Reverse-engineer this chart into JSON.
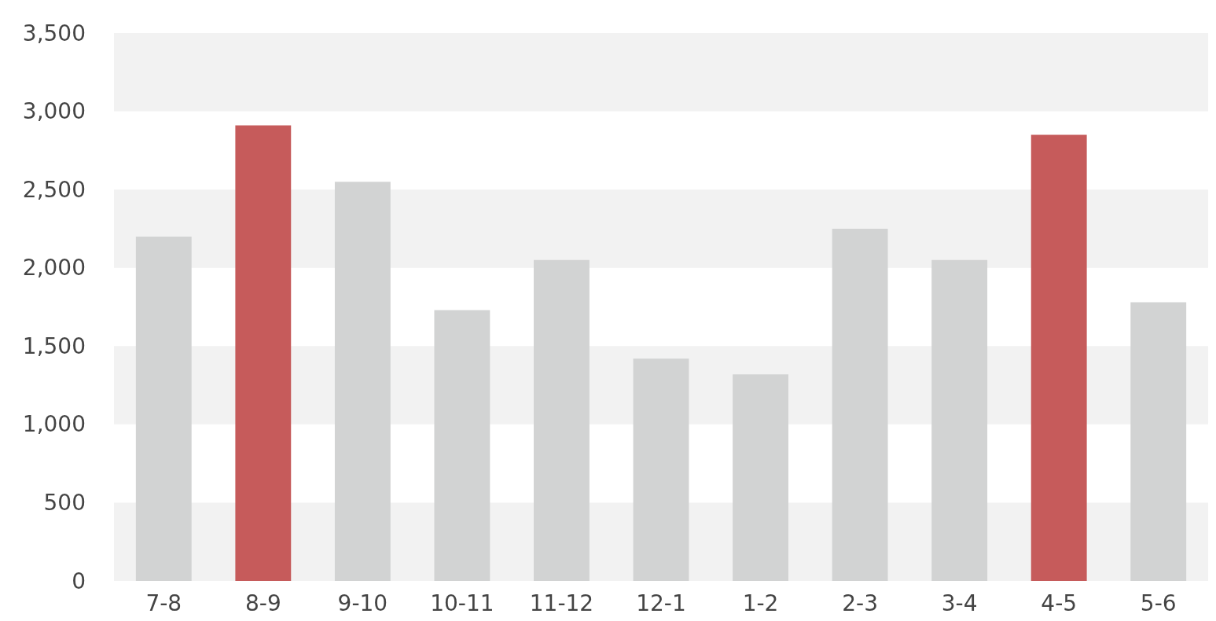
{
  "chart_data": {
    "type": "bar",
    "categories": [
      "7-8",
      "8-9",
      "9-10",
      "10-11",
      "11-12",
      "12-1",
      "1-2",
      "2-3",
      "3-4",
      "4-5",
      "5-6"
    ],
    "values": [
      2200,
      2910,
      2550,
      1730,
      2050,
      1420,
      1320,
      2250,
      2050,
      2850,
      1780
    ],
    "colors": [
      "#d2d3d3",
      "#c65b5b",
      "#d2d3d3",
      "#d2d3d3",
      "#d2d3d3",
      "#d2d3d3",
      "#d2d3d3",
      "#d2d3d3",
      "#d2d3d3",
      "#c65b5b",
      "#d2d3d3"
    ],
    "ylim": [
      0,
      3500
    ],
    "yticks": [
      0,
      500,
      {
        "value": 1000,
        "label": "1,000"
      },
      {
        "value": 1500,
        "label": "1,500"
      },
      {
        "value": 2000,
        "label": "2,000"
      },
      {
        "value": 2500,
        "label": "2,500"
      },
      {
        "value": 3000,
        "label": "3,000"
      },
      {
        "value": 3500,
        "label": "3,500"
      }
    ],
    "bands": [
      {
        "axis": "y",
        "from": 0,
        "to": 500,
        "color": "#f2f2f2"
      },
      {
        "axis": "y",
        "from": 1000,
        "to": 1500,
        "color": "#f2f2f2"
      },
      {
        "axis": "y",
        "from": 2000,
        "to": 2500,
        "color": "#f2f2f2"
      },
      {
        "axis": "y",
        "from": 3000,
        "to": 3500,
        "color": "#f2f2f2"
      }
    ]
  }
}
